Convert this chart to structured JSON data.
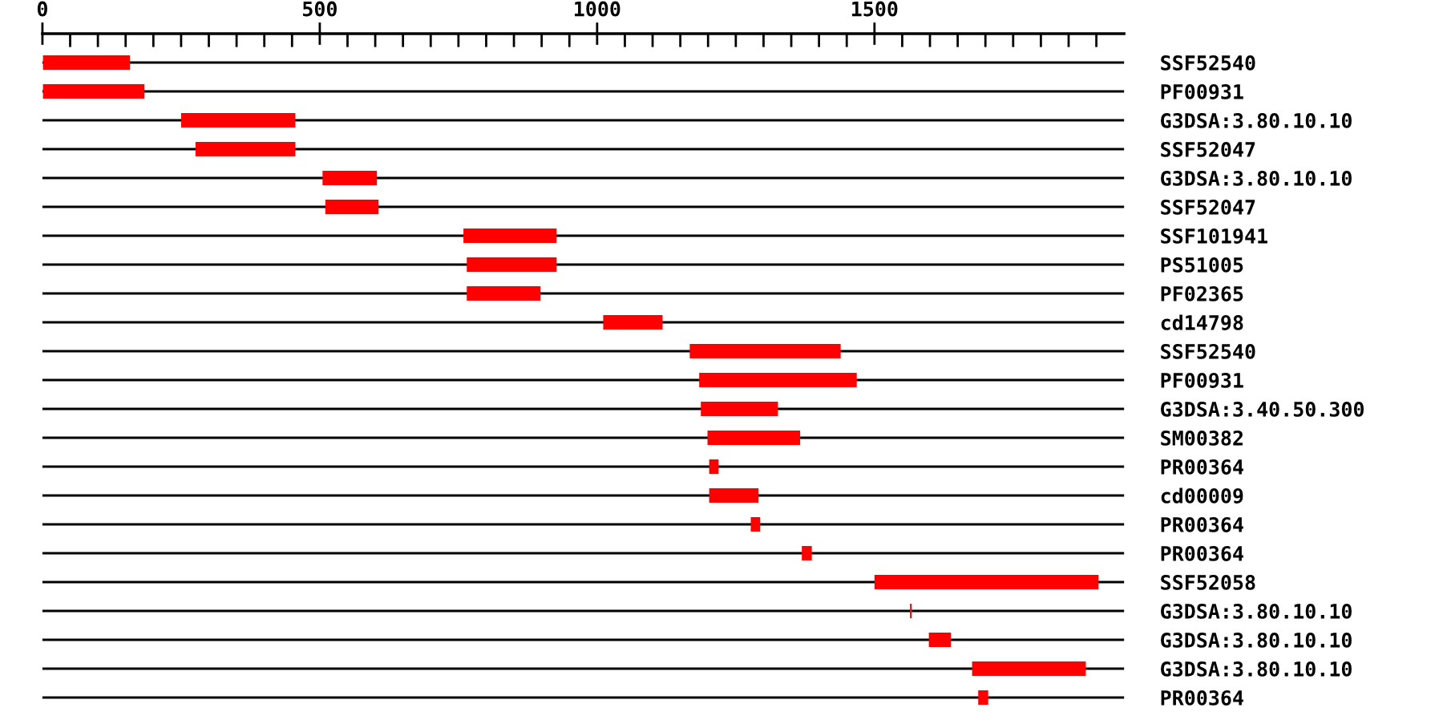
{
  "chart_data": {
    "type": "bar",
    "orientation": "horizontal",
    "grid": "y",
    "categories": [
      "SSF52540",
      "PF00931",
      "G3DSA:3.80.10.10",
      "SSF52047",
      "G3DSA:3.80.10.10",
      "SSF52047",
      "SSF101941",
      "PS51005",
      "PF02365",
      "cd14798",
      "SSF52540",
      "PF00931",
      "G3DSA:3.40.50.300",
      "SM00382",
      "PR00364",
      "cd00009",
      "PR00364",
      "PR00364",
      "SSF52058",
      "G3DSA:3.80.10.10",
      "G3DSA:3.80.10.10",
      "G3DSA:3.80.10.10",
      "PR00364"
    ],
    "base": [
      1,
      1,
      250,
      276,
      505,
      510,
      759,
      765,
      765,
      1011,
      1167,
      1184,
      1187,
      1199,
      1202,
      1202,
      1277,
      1369,
      1500,
      1564,
      1598,
      1676,
      1687
    ],
    "values": [
      157,
      183,
      206,
      180,
      98,
      96,
      168,
      162,
      133,
      107,
      272,
      284,
      139,
      167,
      17,
      89,
      17,
      18,
      404,
      3,
      40,
      205,
      18
    ],
    "color": "#ff0000",
    "xlim": [
      0,
      1950
    ],
    "xticks": [
      0,
      {
        "value": 50,
        "label": null
      },
      {
        "value": 100,
        "label": null
      },
      {
        "value": 150,
        "label": null
      },
      {
        "value": 200,
        "label": null
      },
      {
        "value": 250,
        "label": null
      },
      {
        "value": 300,
        "label": null
      },
      {
        "value": 350,
        "label": null
      },
      {
        "value": 400,
        "label": null
      },
      {
        "value": 450,
        "label": null
      },
      500,
      {
        "value": 550,
        "label": null
      },
      {
        "value": 600,
        "label": null
      },
      {
        "value": 650,
        "label": null
      },
      {
        "value": 700,
        "label": null
      },
      {
        "value": 750,
        "label": null
      },
      {
        "value": 800,
        "label": null
      },
      {
        "value": 850,
        "label": null
      },
      {
        "value": 900,
        "label": null
      },
      {
        "value": 950,
        "label": null
      },
      1000,
      {
        "value": 1050,
        "label": null
      },
      {
        "value": 1100,
        "label": null
      },
      {
        "value": 1150,
        "label": null
      },
      {
        "value": 1200,
        "label": null
      },
      {
        "value": 1250,
        "label": null
      },
      {
        "value": 1300,
        "label": null
      },
      {
        "value": 1350,
        "label": null
      },
      {
        "value": 1400,
        "label": null
      },
      {
        "value": 1450,
        "label": null
      },
      1500,
      {
        "value": 1550,
        "label": null
      },
      {
        "value": 1600,
        "label": null
      },
      {
        "value": 1650,
        "label": null
      },
      {
        "value": 1700,
        "label": null
      },
      {
        "value": 1750,
        "label": null
      },
      {
        "value": 1800,
        "label": null
      },
      {
        "value": 1850,
        "label": null
      },
      {
        "value": 1900,
        "label": null
      }
    ]
  }
}
